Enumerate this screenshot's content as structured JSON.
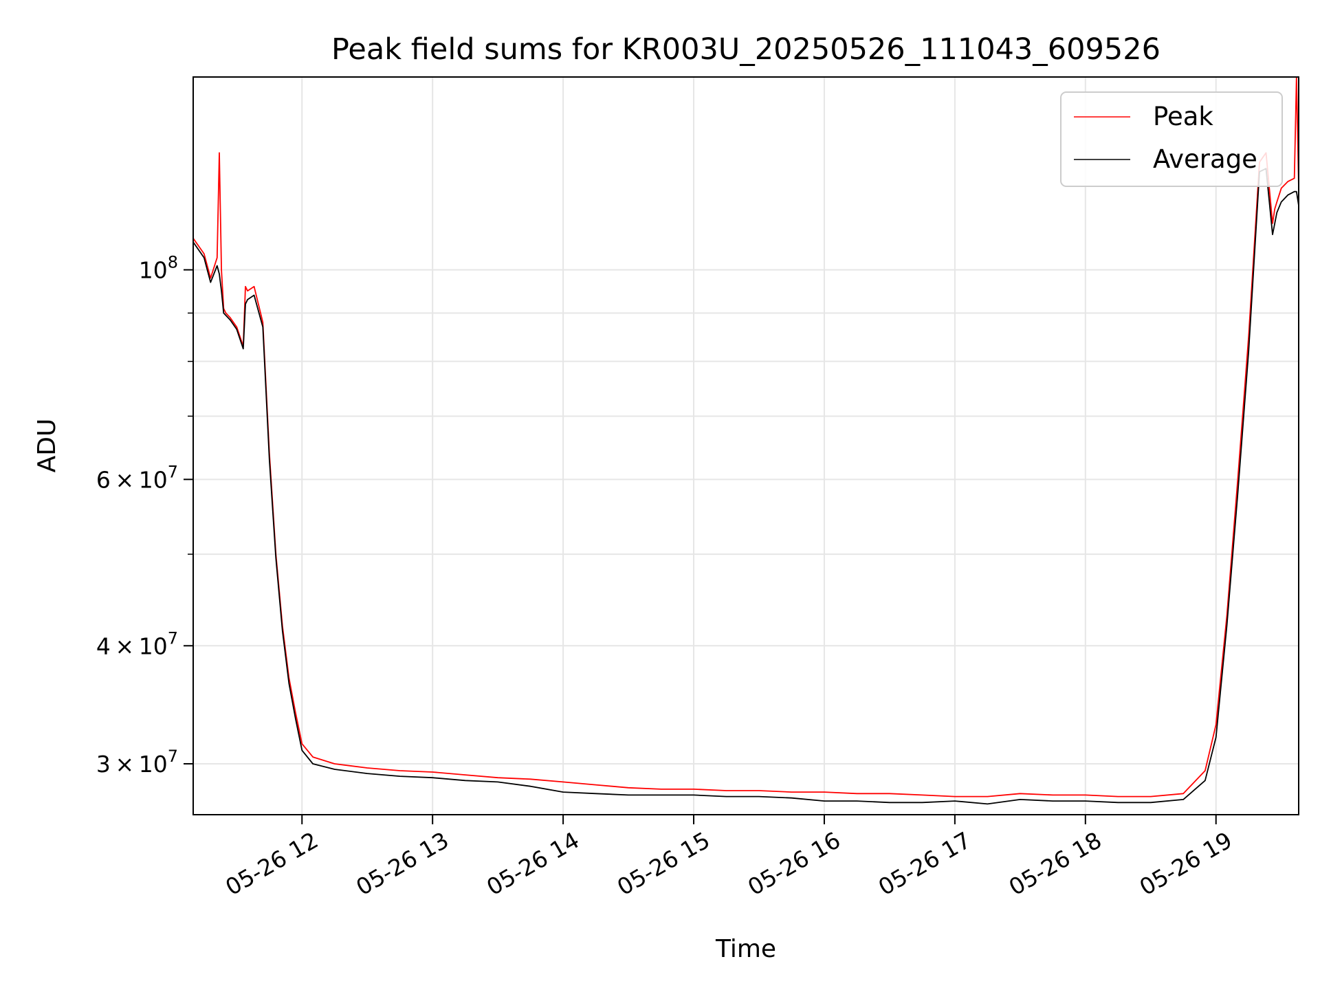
{
  "chart_data": {
    "type": "line",
    "title": "Peak field sums for KR003U_20250526_111043_609526",
    "xlabel": "Time",
    "ylabel": "ADU",
    "y_scale": "log",
    "ylim": [
      26500000,
      160000000
    ],
    "xlim": [
      "2025-05-26 11:10",
      "2025-05-26 19:38"
    ],
    "grid": true,
    "legend_position": "top-right",
    "x_ticks": [
      {
        "t": "2025-05-26 12:00",
        "label": "05-26 12"
      },
      {
        "t": "2025-05-26 13:00",
        "label": "05-26 13"
      },
      {
        "t": "2025-05-26 14:00",
        "label": "05-26 14"
      },
      {
        "t": "2025-05-26 15:00",
        "label": "05-26 15"
      },
      {
        "t": "2025-05-26 16:00",
        "label": "05-26 16"
      },
      {
        "t": "2025-05-26 17:00",
        "label": "05-26 17"
      },
      {
        "t": "2025-05-26 18:00",
        "label": "05-26 18"
      },
      {
        "t": "2025-05-26 19:00",
        "label": "05-26 19"
      }
    ],
    "y_ticks_major": [
      {
        "value": 30000000,
        "base": "3 × 10",
        "exp": "7"
      },
      {
        "value": 40000000,
        "base": "4 × 10",
        "exp": "7"
      },
      {
        "value": 60000000,
        "base": "6 × 10",
        "exp": "7"
      },
      {
        "value": 100000000,
        "base": "10",
        "exp": "8"
      }
    ],
    "y_ticks_minor": [
      50000000,
      70000000,
      80000000,
      90000000
    ],
    "series": [
      {
        "name": "Peak",
        "color": "#ff0000",
        "x": [
          "2025-05-26 11:10",
          "2025-05-26 11:15",
          "2025-05-26 11:18",
          "2025-05-26 11:21",
          "2025-05-26 11:22",
          "2025-05-26 11:23",
          "2025-05-26 11:24",
          "2025-05-26 11:25",
          "2025-05-26 11:27",
          "2025-05-26 11:30",
          "2025-05-26 11:33",
          "2025-05-26 11:34",
          "2025-05-26 11:35",
          "2025-05-26 11:38",
          "2025-05-26 11:42",
          "2025-05-26 11:45",
          "2025-05-26 11:48",
          "2025-05-26 11:51",
          "2025-05-26 11:54",
          "2025-05-26 11:57",
          "2025-05-26 12:00",
          "2025-05-26 12:05",
          "2025-05-26 12:15",
          "2025-05-26 12:30",
          "2025-05-26 12:45",
          "2025-05-26 13:00",
          "2025-05-26 13:15",
          "2025-05-26 13:30",
          "2025-05-26 13:45",
          "2025-05-26 14:00",
          "2025-05-26 14:15",
          "2025-05-26 14:30",
          "2025-05-26 14:45",
          "2025-05-26 15:00",
          "2025-05-26 15:15",
          "2025-05-26 15:30",
          "2025-05-26 15:45",
          "2025-05-26 16:00",
          "2025-05-26 16:15",
          "2025-05-26 16:30",
          "2025-05-26 16:45",
          "2025-05-26 17:00",
          "2025-05-26 17:15",
          "2025-05-26 17:30",
          "2025-05-26 17:45",
          "2025-05-26 18:00",
          "2025-05-26 18:15",
          "2025-05-26 18:30",
          "2025-05-26 18:45",
          "2025-05-26 18:55",
          "2025-05-26 19:00",
          "2025-05-26 19:05",
          "2025-05-26 19:10",
          "2025-05-26 19:15",
          "2025-05-26 19:20",
          "2025-05-26 19:23",
          "2025-05-26 19:26",
          "2025-05-26 19:27",
          "2025-05-26 19:28",
          "2025-05-26 19:30",
          "2025-05-26 19:33",
          "2025-05-26 19:36",
          "2025-05-26 19:37",
          "2025-05-26 19:38"
        ],
        "values": [
          108000000,
          104000000,
          98000000,
          103000000,
          133000000,
          100000000,
          91000000,
          90000000,
          89000000,
          87000000,
          83000000,
          96000000,
          95000000,
          96000000,
          88000000,
          64000000,
          50000000,
          42000000,
          37000000,
          34000000,
          31500000,
          30500000,
          30000000,
          29700000,
          29500000,
          29400000,
          29200000,
          29000000,
          28900000,
          28700000,
          28500000,
          28300000,
          28200000,
          28200000,
          28100000,
          28100000,
          28000000,
          28000000,
          27900000,
          27900000,
          27800000,
          27700000,
          27700000,
          27900000,
          27800000,
          27800000,
          27700000,
          27700000,
          27900000,
          29500000,
          33000000,
          43000000,
          60000000,
          85000000,
          130000000,
          133000000,
          112000000,
          116000000,
          118000000,
          122000000,
          124000000,
          125000000,
          160000000,
          122000000
        ]
      },
      {
        "name": "Average",
        "color": "#000000",
        "x": [
          "2025-05-26 11:10",
          "2025-05-26 11:15",
          "2025-05-26 11:18",
          "2025-05-26 11:21",
          "2025-05-26 11:22",
          "2025-05-26 11:23",
          "2025-05-26 11:24",
          "2025-05-26 11:25",
          "2025-05-26 11:27",
          "2025-05-26 11:30",
          "2025-05-26 11:33",
          "2025-05-26 11:34",
          "2025-05-26 11:35",
          "2025-05-26 11:38",
          "2025-05-26 11:42",
          "2025-05-26 11:45",
          "2025-05-26 11:48",
          "2025-05-26 11:51",
          "2025-05-26 11:54",
          "2025-05-26 11:57",
          "2025-05-26 12:00",
          "2025-05-26 12:05",
          "2025-05-26 12:15",
          "2025-05-26 12:30",
          "2025-05-26 12:45",
          "2025-05-26 13:00",
          "2025-05-26 13:15",
          "2025-05-26 13:30",
          "2025-05-26 13:45",
          "2025-05-26 14:00",
          "2025-05-26 14:15",
          "2025-05-26 14:30",
          "2025-05-26 14:45",
          "2025-05-26 15:00",
          "2025-05-26 15:15",
          "2025-05-26 15:30",
          "2025-05-26 15:45",
          "2025-05-26 16:00",
          "2025-05-26 16:15",
          "2025-05-26 16:30",
          "2025-05-26 16:45",
          "2025-05-26 17:00",
          "2025-05-26 17:15",
          "2025-05-26 17:30",
          "2025-05-26 17:45",
          "2025-05-26 18:00",
          "2025-05-26 18:15",
          "2025-05-26 18:30",
          "2025-05-26 18:45",
          "2025-05-26 18:55",
          "2025-05-26 19:00",
          "2025-05-26 19:05",
          "2025-05-26 19:10",
          "2025-05-26 19:15",
          "2025-05-26 19:20",
          "2025-05-26 19:23",
          "2025-05-26 19:26",
          "2025-05-26 19:27",
          "2025-05-26 19:28",
          "2025-05-26 19:30",
          "2025-05-26 19:33",
          "2025-05-26 19:36",
          "2025-05-26 19:37",
          "2025-05-26 19:38"
        ],
        "values": [
          107000000,
          103000000,
          97000000,
          101000000,
          99000000,
          95000000,
          90000000,
          89500000,
          88500000,
          86500000,
          82500000,
          92000000,
          93000000,
          94000000,
          87000000,
          63000000,
          49500000,
          41500000,
          36500000,
          33500000,
          31000000,
          30000000,
          29600000,
          29300000,
          29100000,
          29000000,
          28800000,
          28700000,
          28400000,
          28000000,
          27900000,
          27800000,
          27800000,
          27800000,
          27700000,
          27700000,
          27600000,
          27400000,
          27400000,
          27300000,
          27300000,
          27400000,
          27200000,
          27500000,
          27400000,
          27400000,
          27300000,
          27300000,
          27500000,
          28800000,
          32000000,
          42000000,
          58000000,
          82000000,
          127000000,
          128000000,
          109000000,
          112000000,
          115000000,
          118000000,
          120000000,
          121000000,
          121000000,
          117000000
        ]
      }
    ]
  }
}
